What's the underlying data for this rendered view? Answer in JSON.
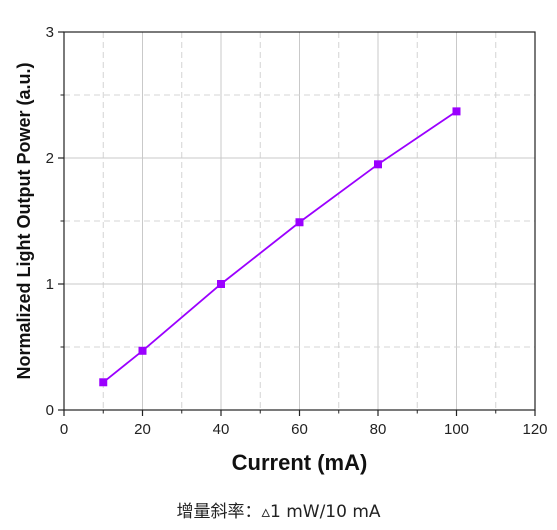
{
  "chart_data": {
    "type": "line",
    "xlabel": "Current (mA)",
    "ylabel": "Normalized Light Output Power (a.u.)",
    "xlim": [
      0,
      120
    ],
    "ylim": [
      0,
      3
    ],
    "x_major_ticks": [
      0,
      20,
      40,
      60,
      80,
      100,
      120
    ],
    "x_minor_ticks": [
      10,
      30,
      50,
      70,
      90,
      110
    ],
    "y_major_ticks": [
      0,
      1,
      2,
      3
    ],
    "y_minor_ticks": [
      0.5,
      1.5,
      2.5
    ],
    "x_tick_labels": [
      "0",
      "20",
      "40",
      "60",
      "80",
      "100",
      "120"
    ],
    "y_tick_labels": [
      "0",
      "1",
      "2",
      "3"
    ],
    "grid": true,
    "series": [
      {
        "color": "#9b00ff",
        "marker": "square",
        "x": [
          10,
          20,
          40,
          60,
          80,
          100
        ],
        "y": [
          0.22,
          0.47,
          1.0,
          1.49,
          1.95,
          2.37
        ]
      }
    ]
  },
  "caption": "增量斜率：▵1 mW/10 mA"
}
